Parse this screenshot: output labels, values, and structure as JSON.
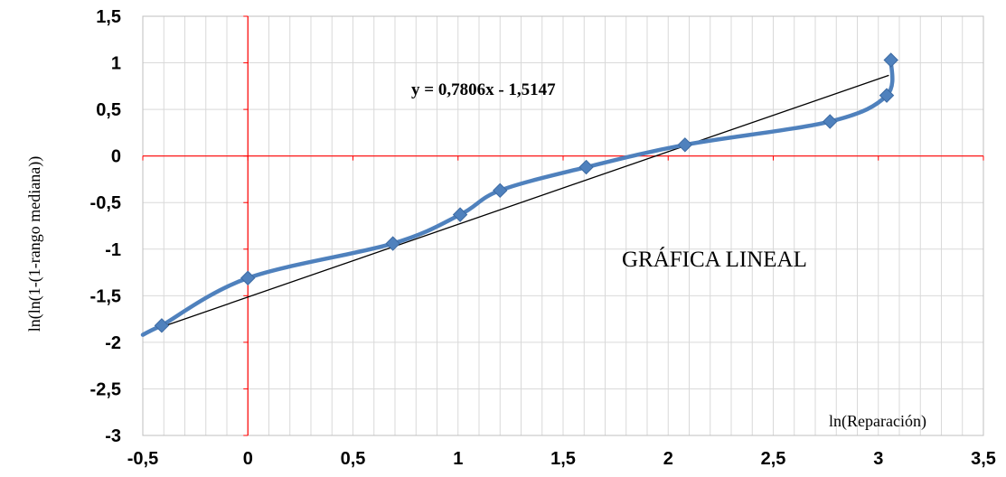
{
  "chart_data": {
    "type": "scatter",
    "title": "GRÁFICA LINEAL",
    "xlabel": "ln(Reparación)",
    "ylabel": "ln(ln(1-(1-rango mediana))",
    "xlim": [
      -0.5,
      3.5
    ],
    "ylim": [
      -3,
      1.5
    ],
    "x_ticks": [
      "-0,5",
      "0",
      "0,5",
      "1",
      "1,5",
      "2",
      "2,5",
      "3",
      "3,5"
    ],
    "y_ticks": [
      "1,5",
      "1",
      "0,5",
      "0",
      "-0,5",
      "-1",
      "-1,5",
      "-2",
      "-2,5",
      "-3"
    ],
    "grid": true,
    "series": [
      {
        "color": "#4f81bd",
        "points": [
          {
            "x": -0.41,
            "y": -1.82
          },
          {
            "x": 0.0,
            "y": -1.31
          },
          {
            "x": 0.69,
            "y": -0.94
          },
          {
            "x": 1.01,
            "y": -0.63
          },
          {
            "x": 1.2,
            "y": -0.37
          },
          {
            "x": 1.61,
            "y": -0.12
          },
          {
            "x": 2.08,
            "y": 0.12
          },
          {
            "x": 2.77,
            "y": 0.37
          },
          {
            "x": 3.04,
            "y": 0.65
          },
          {
            "x": 3.06,
            "y": 1.03
          }
        ]
      }
    ],
    "trendline": {
      "equation": "y = 0,7806x - 1,5147",
      "slope": 0.7806,
      "intercept": -1.5147,
      "x_range": [
        -0.5,
        3.05
      ],
      "color": "#000000"
    },
    "axis_color": "#ff0000",
    "grid_color": "#d9d9d9"
  }
}
